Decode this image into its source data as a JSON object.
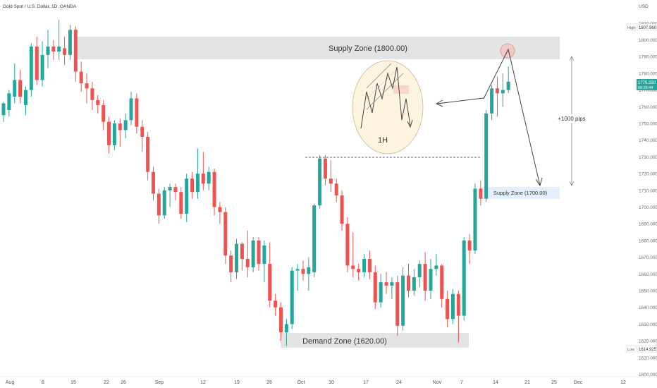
{
  "header": {
    "symbol_title": "Gold Spot / U.S. Dollar, 1D, OANDA",
    "currency": "USD"
  },
  "price_axis": {
    "ticks": [
      "1810.000",
      "1800.000",
      "1790.000",
      "1780.000",
      "1770.000",
      "1760.000",
      "1750.000",
      "1740.000",
      "1730.000",
      "1720.000",
      "1710.000",
      "1700.000",
      "1690.000",
      "1680.000",
      "1670.000",
      "1660.000",
      "1650.000",
      "1640.000",
      "1630.000",
      "1620.000",
      "1610.000",
      "1600.000"
    ],
    "high_label": "High",
    "high_value": "1807.960",
    "last_value": "1775.250",
    "countdown": "09:26:44",
    "low_label": "Low",
    "low_value": "1614.925"
  },
  "time_axis": {
    "labels": [
      "Aug",
      "8",
      "15",
      "22",
      "26",
      "Sep",
      "12",
      "19",
      "26",
      "Oct",
      "10",
      "17",
      "24",
      "Nov",
      "7",
      "14",
      "21",
      "25",
      "Dec",
      "12"
    ]
  },
  "annotations": {
    "supply_zone_top": "Supply Zone (1800.00)",
    "supply_zone_small": "Supply Zone (1700.00)",
    "demand_zone": "Demand Zone (1620.00)",
    "range_label": "+1000 pips",
    "inset_label": "1H"
  },
  "colors": {
    "bull": "#26a69a",
    "bear": "#ef5350",
    "zone_grey": "#e3e3e3",
    "zone_blue": "#e3effd",
    "inset_fill": "#fdf3df",
    "target_circle": "#f2c9c4"
  },
  "chart_data": {
    "type": "candlestick",
    "title": "Gold Spot / U.S. Dollar, 1D, OANDA",
    "y_unit": "USD",
    "ylim": [
      1600,
      1815
    ],
    "ohlc": [
      [
        1755,
        1762,
        1751,
        1763
      ],
      [
        1758,
        1768,
        1754,
        1770
      ],
      [
        1766,
        1776,
        1762,
        1786
      ],
      [
        1776,
        1766,
        1762,
        1782
      ],
      [
        1761,
        1770,
        1755,
        1772
      ],
      [
        1770,
        1796,
        1766,
        1798
      ],
      [
        1796,
        1776,
        1773,
        1802
      ],
      [
        1776,
        1791,
        1772,
        1799
      ],
      [
        1791,
        1796,
        1783,
        1806
      ],
      [
        1796,
        1793,
        1788,
        1800
      ],
      [
        1793,
        1796,
        1788,
        1812
      ],
      [
        1795,
        1791,
        1785,
        1802
      ],
      [
        1791,
        1806,
        1788,
        1809
      ],
      [
        1806,
        1781,
        1775,
        1808
      ],
      [
        1781,
        1774,
        1769,
        1787
      ],
      [
        1774,
        1771,
        1762,
        1780
      ],
      [
        1771,
        1764,
        1758,
        1775
      ],
      [
        1764,
        1761,
        1756,
        1767
      ],
      [
        1761,
        1751,
        1746,
        1764
      ],
      [
        1751,
        1737,
        1732,
        1754
      ],
      [
        1737,
        1750,
        1734,
        1752
      ],
      [
        1750,
        1746,
        1736,
        1753
      ],
      [
        1746,
        1752,
        1741,
        1756
      ],
      [
        1752,
        1765,
        1749,
        1769
      ],
      [
        1765,
        1748,
        1744,
        1768
      ],
      [
        1748,
        1742,
        1733,
        1752
      ],
      [
        1742,
        1721,
        1716,
        1745
      ],
      [
        1721,
        1708,
        1704,
        1724
      ],
      [
        1708,
        1695,
        1690,
        1711
      ],
      [
        1695,
        1710,
        1693,
        1712
      ],
      [
        1710,
        1712,
        1700,
        1714
      ],
      [
        1712,
        1709,
        1704,
        1714
      ],
      [
        1709,
        1696,
        1693,
        1712
      ],
      [
        1696,
        1717,
        1691,
        1720
      ],
      [
        1717,
        1709,
        1705,
        1721
      ],
      [
        1709,
        1720,
        1705,
        1735
      ],
      [
        1720,
        1714,
        1710,
        1733
      ],
      [
        1714,
        1721,
        1710,
        1724
      ],
      [
        1721,
        1700,
        1695,
        1723
      ],
      [
        1700,
        1697,
        1690,
        1703
      ],
      [
        1697,
        1671,
        1666,
        1700
      ],
      [
        1671,
        1661,
        1655,
        1674
      ],
      [
        1661,
        1678,
        1657,
        1681
      ],
      [
        1678,
        1669,
        1662,
        1679
      ],
      [
        1669,
        1664,
        1658,
        1686
      ],
      [
        1664,
        1680,
        1661,
        1682
      ],
      [
        1680,
        1666,
        1662,
        1682
      ],
      [
        1666,
        1677,
        1655,
        1680
      ],
      [
        1666,
        1644,
        1640,
        1679
      ],
      [
        1644,
        1640,
        1635,
        1648
      ],
      [
        1640,
        1625,
        1620,
        1643
      ],
      [
        1625,
        1630,
        1617,
        1633
      ],
      [
        1630,
        1662,
        1627,
        1664
      ],
      [
        1662,
        1663,
        1650,
        1666
      ],
      [
        1663,
        1660,
        1656,
        1668
      ],
      [
        1660,
        1664,
        1650,
        1670
      ],
      [
        1661,
        1701,
        1658,
        1702
      ],
      [
        1701,
        1729,
        1699,
        1731
      ],
      [
        1729,
        1717,
        1713,
        1731
      ],
      [
        1717,
        1714,
        1709,
        1728
      ],
      [
        1714,
        1707,
        1703,
        1717
      ],
      [
        1707,
        1690,
        1686,
        1710
      ],
      [
        1690,
        1665,
        1661,
        1694
      ],
      [
        1665,
        1663,
        1658,
        1685
      ],
      [
        1663,
        1661,
        1656,
        1666
      ],
      [
        1661,
        1669,
        1658,
        1672
      ],
      [
        1669,
        1661,
        1657,
        1674
      ],
      [
        1661,
        1643,
        1639,
        1665
      ],
      [
        1643,
        1655,
        1640,
        1660
      ],
      [
        1655,
        1653,
        1648,
        1661
      ],
      [
        1653,
        1655,
        1645,
        1658
      ],
      [
        1655,
        1629,
        1623,
        1659
      ],
      [
        1629,
        1659,
        1626,
        1664
      ],
      [
        1659,
        1650,
        1646,
        1666
      ],
      [
        1650,
        1658,
        1647,
        1663
      ],
      [
        1658,
        1666,
        1652,
        1668
      ],
      [
        1666,
        1650,
        1644,
        1673
      ],
      [
        1650,
        1663,
        1645,
        1669
      ],
      [
        1663,
        1665,
        1659,
        1672
      ],
      [
        1665,
        1645,
        1640,
        1666
      ],
      [
        1645,
        1633,
        1628,
        1650
      ],
      [
        1633,
        1648,
        1630,
        1651
      ],
      [
        1648,
        1635,
        1619,
        1650
      ],
      [
        1635,
        1680,
        1632,
        1682
      ],
      [
        1680,
        1674,
        1666,
        1684
      ],
      [
        1674,
        1711,
        1672,
        1714
      ],
      [
        1711,
        1705,
        1701,
        1716
      ],
      [
        1705,
        1756,
        1703,
        1758
      ],
      [
        1756,
        1771,
        1752,
        1773
      ],
      [
        1771,
        1768,
        1754,
        1778
      ],
      [
        1768,
        1770,
        1760,
        1780
      ],
      [
        1770,
        1775,
        1768,
        1784
      ]
    ],
    "zones": [
      {
        "label": "Supply Zone (1800.00)",
        "top": 1802.5,
        "bottom": 1788.5
      },
      {
        "label": "Supply Zone (1700.00)",
        "top": 1711.5,
        "bottom": 1705.0
      },
      {
        "label": "Demand Zone (1620.00)",
        "top": 1623.5,
        "bottom": 1615.5
      }
    ],
    "range_label": "+1000 pips",
    "x_ticks": [
      "Aug",
      "8",
      "15",
      "22",
      "26",
      "Sep",
      "12",
      "19",
      "26",
      "Oct",
      "10",
      "17",
      "24",
      "Nov",
      "7",
      "14",
      "21",
      "25",
      "Dec",
      "12"
    ],
    "grid": false,
    "legend": "none"
  }
}
